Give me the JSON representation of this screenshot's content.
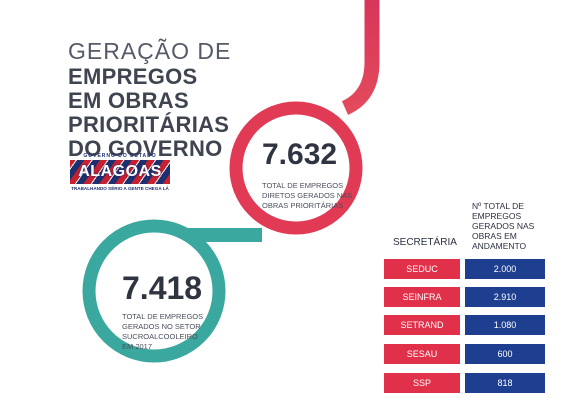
{
  "title": {
    "line1": "GERAÇÃO DE",
    "line2": "EMPREGOS",
    "line3": "EM OBRAS",
    "line4": "PRIORITÁRIAS",
    "line5": "DO GOVERNO"
  },
  "logo": {
    "top_text": "GOVERNO DO ESTADO",
    "name": "ALAGOAS",
    "slogan": "TRABALHANDO SÉRIO A GENTE CHEGA LÁ"
  },
  "stat_direct": {
    "value": "7.632",
    "caption_line1": "TOTAL DE EMPREGOS",
    "caption_line2": "DIRETOS GERADOS NAS",
    "caption_line3": "OBRAS PRIORITÁRIAS"
  },
  "stat_sugar": {
    "value": "7.418",
    "caption_line1": "TOTAL DE EMPREGOS",
    "caption_line2": "GERADOS NO SETOR",
    "caption_line3": "SUCROALCOOLEIRO",
    "caption_line4": "EM 2017"
  },
  "table": {
    "header_secretaria": "SECRETÁRIA",
    "header_total": "Nº TOTAL DE EMPREGOS GERADOS NAS OBRAS EM ANDAMENTO",
    "rows": [
      {
        "secretaria": "SEDUC",
        "total": "2.000"
      },
      {
        "secretaria": "SEINFRA",
        "total": "2.910"
      },
      {
        "secretaria": "SETRAND",
        "total": "1.080"
      },
      {
        "secretaria": "SESAU",
        "total": "600"
      },
      {
        "secretaria": "SSP",
        "total": "818"
      }
    ]
  },
  "colors": {
    "red": "#e0304a",
    "teal": "#3aa89f",
    "navy": "#1e3f8f"
  }
}
